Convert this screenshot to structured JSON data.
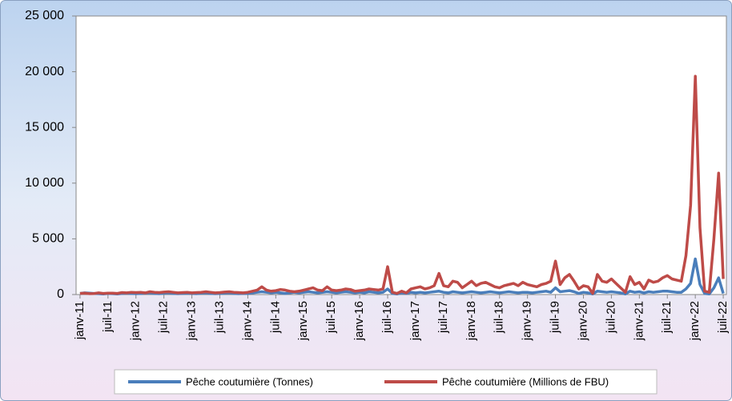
{
  "chart_data": {
    "type": "line",
    "categories": [
      "janv-11",
      null,
      null,
      null,
      null,
      null,
      "juil-11",
      null,
      null,
      null,
      null,
      null,
      "janv-12",
      null,
      null,
      null,
      null,
      null,
      "juil-12",
      null,
      null,
      null,
      null,
      null,
      "janv-13",
      null,
      null,
      null,
      null,
      null,
      "juil-13",
      null,
      null,
      null,
      null,
      null,
      "janv-14",
      null,
      null,
      null,
      null,
      null,
      "juil-14",
      null,
      null,
      null,
      null,
      null,
      "janv-15",
      null,
      null,
      null,
      null,
      null,
      "juil-15",
      null,
      null,
      null,
      null,
      null,
      "janv-16",
      null,
      null,
      null,
      null,
      null,
      "juil-16",
      null,
      null,
      null,
      null,
      null,
      "janv-17",
      null,
      null,
      null,
      null,
      null,
      "juil-17",
      null,
      null,
      null,
      null,
      null,
      "janv-18",
      null,
      null,
      null,
      null,
      null,
      "juil-18",
      null,
      null,
      null,
      null,
      null,
      "janv-19",
      null,
      null,
      null,
      null,
      null,
      "juil-19",
      null,
      null,
      null,
      null,
      null,
      "janv-20",
      null,
      null,
      null,
      null,
      null,
      "juil-20",
      null,
      null,
      null,
      null,
      null,
      "janv-21",
      null,
      null,
      null,
      null,
      null,
      "juil-21",
      null,
      null,
      null,
      null,
      null,
      "janv-22",
      null,
      null,
      null,
      null,
      null,
      "juil-22"
    ],
    "series": [
      {
        "name": "Pêche coutumière (Tonnes)",
        "color": "#4a7ebb",
        "values": [
          100,
          150,
          120,
          100,
          80,
          50,
          100,
          80,
          60,
          100,
          120,
          100,
          80,
          100,
          120,
          150,
          100,
          80,
          120,
          150,
          100,
          80,
          100,
          120,
          100,
          80,
          120,
          150,
          100,
          80,
          100,
          120,
          150,
          100,
          80,
          100,
          100,
          150,
          200,
          250,
          200,
          150,
          200,
          150,
          100,
          150,
          200,
          150,
          200,
          250,
          200,
          150,
          200,
          250,
          200,
          150,
          200,
          250,
          200,
          150,
          200,
          150,
          250,
          200,
          150,
          200,
          500,
          100,
          50,
          150,
          100,
          200,
          150,
          200,
          150,
          200,
          250,
          300,
          200,
          150,
          250,
          200,
          150,
          200,
          250,
          200,
          150,
          200,
          250,
          200,
          150,
          200,
          250,
          200,
          150,
          200,
          200,
          150,
          200,
          250,
          300,
          200,
          600,
          250,
          300,
          350,
          250,
          100,
          200,
          150,
          50,
          300,
          250,
          200,
          250,
          200,
          150,
          50,
          300,
          200,
          250,
          150,
          250,
          200,
          250,
          300,
          300,
          250,
          200,
          200,
          500,
          1000,
          3200,
          900,
          100,
          50,
          600,
          1500,
          100
        ]
      },
      {
        "name": "Pêche coutumière (Millions de FBU)",
        "color": "#be4b48",
        "values": [
          100,
          120,
          80,
          90,
          150,
          100,
          120,
          130,
          100,
          180,
          150,
          200,
          180,
          200,
          150,
          250,
          200,
          180,
          220,
          250,
          200,
          150,
          180,
          200,
          150,
          180,
          200,
          250,
          200,
          150,
          180,
          220,
          250,
          200,
          180,
          150,
          200,
          300,
          400,
          700,
          400,
          300,
          350,
          450,
          400,
          300,
          250,
          300,
          400,
          500,
          600,
          400,
          350,
          700,
          400,
          350,
          400,
          500,
          450,
          300,
          350,
          400,
          500,
          450,
          400,
          500,
          2500,
          200,
          100,
          300,
          150,
          500,
          600,
          700,
          500,
          600,
          800,
          1900,
          800,
          700,
          1200,
          1100,
          600,
          900,
          1200,
          800,
          1000,
          1100,
          900,
          700,
          600,
          800,
          900,
          1000,
          800,
          1100,
          900,
          800,
          700,
          900,
          1000,
          1200,
          3000,
          900,
          1500,
          1800,
          1200,
          500,
          800,
          700,
          100,
          1800,
          1200,
          1100,
          1400,
          1000,
          600,
          200,
          1600,
          900,
          1100,
          500,
          1300,
          1100,
          1200,
          1500,
          1700,
          1400,
          1300,
          1200,
          3500,
          8000,
          19600,
          6000,
          300,
          200,
          5000,
          10900,
          1400
        ]
      }
    ],
    "ylim": [
      0,
      25000
    ],
    "yticks": [
      0,
      {
        "value": 5000,
        "label": "5 000"
      },
      {
        "value": 10000,
        "label": "10 000"
      },
      {
        "value": 15000,
        "label": "15 000"
      },
      {
        "value": 20000,
        "label": "20 000"
      },
      {
        "value": 25000,
        "label": "25 000"
      }
    ],
    "grid": false,
    "legend": "bottom"
  }
}
